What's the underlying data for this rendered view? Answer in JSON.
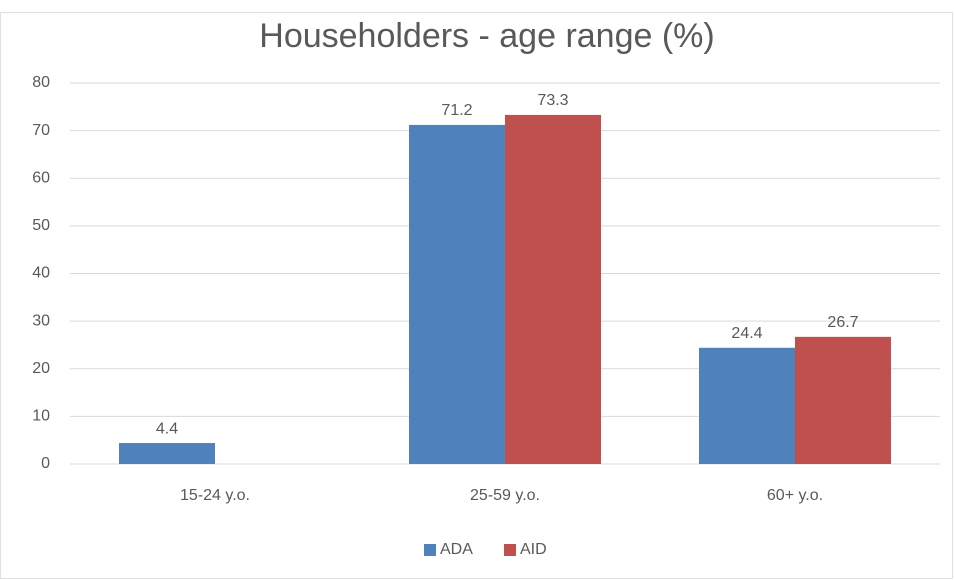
{
  "chart_data": {
    "type": "bar",
    "title": "Householders - age range (%)",
    "categories": [
      "15-24 y.o.",
      "25-59 y.o.",
      "60+ y.o."
    ],
    "series": [
      {
        "name": "ADA",
        "color": "#4f81bd",
        "values": [
          4.4,
          71.2,
          24.4
        ]
      },
      {
        "name": "AID",
        "color": "#c0504d",
        "values": [
          null,
          73.3,
          26.7
        ]
      }
    ],
    "ylim": [
      0,
      80
    ],
    "yticks": [
      0,
      10,
      20,
      30,
      40,
      50,
      60,
      70,
      80
    ],
    "grid": true,
    "legend": "bottom"
  }
}
